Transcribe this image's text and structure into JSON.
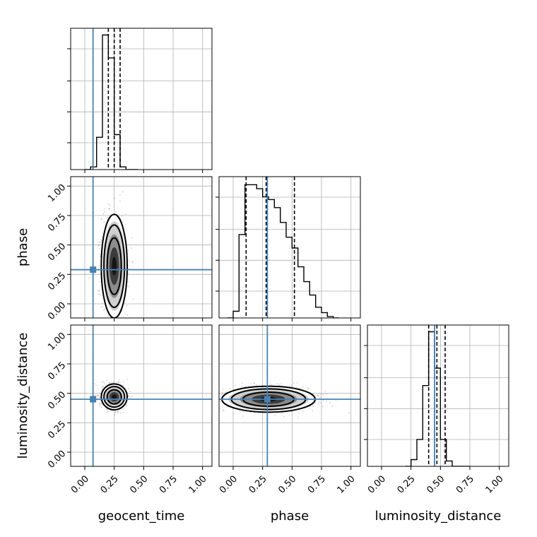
{
  "chart_data": {
    "type": "corner",
    "grid": true,
    "truth_color": "#4682b4",
    "parameters": [
      "geocent_time",
      "phase",
      "luminosity_distance"
    ],
    "axis_labels": {
      "geocent_time": "geocent_time",
      "phase": "phase",
      "luminosity_distance": "luminosity_distance"
    },
    "ticks": {
      "values": [
        0,
        0.25,
        0.5,
        0.75,
        1.0
      ],
      "labels": [
        "0.00",
        "0.25",
        "0.50",
        "0.75",
        "1.00"
      ]
    },
    "range": [
      -0.12,
      1.08
    ],
    "truths": {
      "geocent_time": 0.07,
      "phase": 0.29,
      "luminosity_distance": 0.45
    },
    "quantiles": {
      "geocent_time": [
        0.2,
        0.25,
        0.3
      ],
      "phase": [
        0.11,
        0.28,
        0.52
      ],
      "luminosity_distance": [
        0.4,
        0.47,
        0.54
      ]
    },
    "histograms": {
      "geocent_time": {
        "edges": [
          0.0,
          0.05,
          0.1,
          0.15,
          0.2,
          0.25,
          0.3,
          0.35,
          0.4,
          0.45
        ],
        "counts": [
          0.0,
          0.02,
          0.24,
          1.0,
          0.83,
          0.26,
          0.02,
          0.0,
          0.0
        ]
      },
      "phase": {
        "edges": [
          -0.05,
          0.0,
          0.05,
          0.1,
          0.15,
          0.2,
          0.25,
          0.3,
          0.35,
          0.4,
          0.45,
          0.5,
          0.55,
          0.6,
          0.65,
          0.7,
          0.75,
          0.8,
          0.85,
          0.9
        ],
        "counts": [
          0.0,
          0.05,
          0.62,
          0.99,
          0.99,
          0.96,
          0.9,
          0.88,
          0.82,
          0.71,
          0.6,
          0.52,
          0.38,
          0.27,
          0.17,
          0.08,
          0.04,
          0.01,
          0.0
        ]
      },
      "luminosity_distance": {
        "edges": [
          0.2,
          0.25,
          0.3,
          0.35,
          0.4,
          0.45,
          0.5,
          0.55,
          0.6,
          0.65,
          0.7,
          0.75
        ],
        "counts": [
          0.0,
          0.05,
          0.2,
          0.6,
          1.0,
          0.73,
          0.2,
          0.04,
          0.0,
          0.0,
          0.0
        ]
      }
    },
    "joint_2d": [
      {
        "x": "geocent_time",
        "y": "phase",
        "x_center": 0.25,
        "y_center": 0.32,
        "x_sd": 0.05,
        "y_sd": 0.2
      },
      {
        "x": "geocent_time",
        "y": "luminosity_distance",
        "x_center": 0.25,
        "y_center": 0.47,
        "x_sd": 0.05,
        "y_sd": 0.05
      },
      {
        "x": "phase",
        "y": "luminosity_distance",
        "x_center": 0.3,
        "y_center": 0.45,
        "x_sd": 0.18,
        "y_sd": 0.05
      }
    ]
  }
}
